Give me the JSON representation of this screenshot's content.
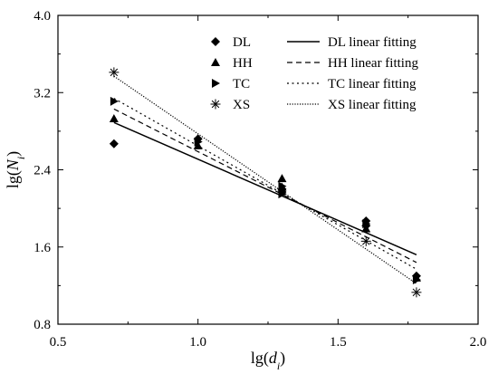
{
  "chart_data": {
    "type": "scatter",
    "xlabel": "lg(d_i)",
    "ylabel": "lg(N_i)",
    "xlim": [
      0.5,
      2.0
    ],
    "ylim": [
      0.8,
      4.0
    ],
    "xticks": [
      "0.5",
      "1.0",
      "1.5",
      "2.0"
    ],
    "yticks": [
      "0.8",
      "1.6",
      "2.4",
      "3.2",
      "4.0"
    ],
    "grid": false,
    "legend_position": "top-right",
    "series": [
      {
        "name": "DL",
        "marker": "diamond",
        "x": [
          0.7,
          1.0,
          1.3,
          1.3,
          1.6,
          1.6,
          1.78
        ],
        "y": [
          2.67,
          2.72,
          2.2,
          2.17,
          1.87,
          1.82,
          1.3
        ],
        "fit_name": "DL linear fitting",
        "fit_style": "solid",
        "fit_x": [
          0.7,
          1.78
        ],
        "fit_y": [
          2.89,
          1.52
        ]
      },
      {
        "name": "HH",
        "marker": "triangle",
        "x": [
          0.7,
          1.0,
          1.3,
          1.3,
          1.6,
          1.78
        ],
        "y": [
          2.93,
          2.65,
          2.31,
          2.22,
          1.79,
          1.28
        ],
        "fit_name": "HH linear fitting",
        "fit_style": "dashed",
        "fit_x": [
          0.7,
          1.78
        ],
        "fit_y": [
          3.03,
          1.44
        ]
      },
      {
        "name": "TC",
        "marker": "triangle-right",
        "x": [
          0.7,
          1.0,
          1.3,
          1.3,
          1.6,
          1.78
        ],
        "y": [
          3.11,
          2.69,
          2.23,
          2.15,
          1.84,
          1.26
        ],
        "fit_name": "TC linear fitting",
        "fit_style": "dotted",
        "fit_x": [
          0.7,
          1.78
        ],
        "fit_y": [
          3.14,
          1.37
        ]
      },
      {
        "name": "XS",
        "marker": "asterisk",
        "x": [
          0.7,
          1.6,
          1.78
        ],
        "y": [
          3.41,
          1.66,
          1.13
        ],
        "fit_name": "XS linear fitting",
        "fit_style": "dense-dotted",
        "fit_x": [
          0.7,
          1.78
        ],
        "fit_y": [
          3.37,
          1.22
        ]
      }
    ]
  }
}
